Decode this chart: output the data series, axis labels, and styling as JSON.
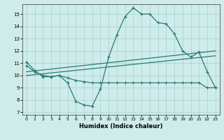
{
  "title": "",
  "xlabel": "Humidex (Indice chaleur)",
  "xlim": [
    -0.5,
    23.5
  ],
  "ylim": [
    6.8,
    15.8
  ],
  "yticks": [
    7,
    8,
    9,
    10,
    11,
    12,
    13,
    14,
    15
  ],
  "xticks": [
    0,
    1,
    2,
    3,
    4,
    5,
    6,
    7,
    8,
    9,
    10,
    11,
    12,
    13,
    14,
    15,
    16,
    17,
    18,
    19,
    20,
    21,
    22,
    23
  ],
  "bg_color": "#ceecea",
  "grid_color": "#aed4d2",
  "line_color": "#2a7a76",
  "line1_x": [
    0,
    1,
    2,
    3,
    4,
    5,
    6,
    7,
    8,
    9,
    10,
    11,
    12,
    13,
    14,
    15,
    16,
    17,
    18,
    19,
    20,
    21,
    22,
    23
  ],
  "line1_y": [
    11.1,
    10.4,
    9.9,
    9.9,
    10.0,
    9.4,
    7.9,
    7.6,
    7.5,
    8.9,
    11.5,
    13.3,
    14.8,
    15.5,
    15.0,
    15.0,
    14.3,
    14.2,
    13.4,
    12.0,
    11.5,
    11.9,
    10.3,
    9.0
  ],
  "line2_x": [
    0,
    1,
    2,
    3,
    4,
    5,
    6,
    7,
    8,
    9,
    10,
    11,
    12,
    13,
    14,
    15,
    16,
    17,
    18,
    19,
    20,
    21,
    22,
    23
  ],
  "line2_y": [
    10.8,
    10.3,
    10.0,
    9.9,
    10.0,
    9.8,
    9.6,
    9.5,
    9.4,
    9.4,
    9.4,
    9.4,
    9.4,
    9.4,
    9.4,
    9.4,
    9.4,
    9.4,
    9.4,
    9.4,
    9.4,
    9.4,
    9.0,
    9.0
  ],
  "line3_x": [
    0,
    23
  ],
  "line3_y": [
    10.3,
    12.0
  ],
  "line4_x": [
    0,
    23
  ],
  "line4_y": [
    10.0,
    11.6
  ]
}
